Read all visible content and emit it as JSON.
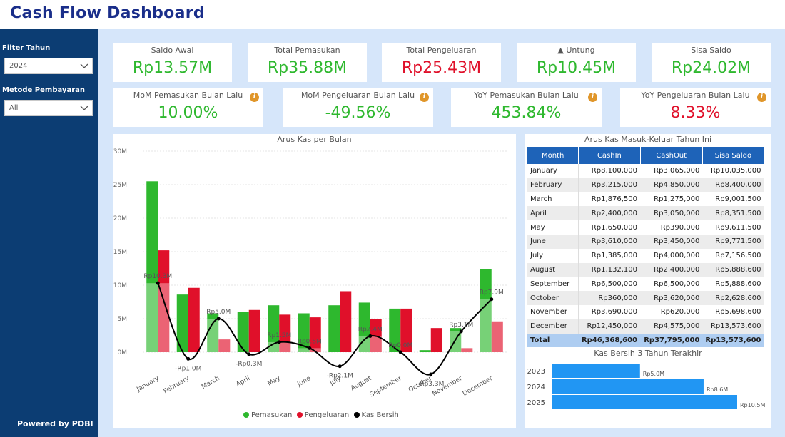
{
  "header": {
    "title": "Cash Flow Dashboard"
  },
  "sidebar": {
    "filter_year_label": "Filter Tahun",
    "filter_year_value": "2024",
    "payment_method_label": "Metode Pembayaran",
    "payment_method_value": "All",
    "powered_by": "Powered by POBI"
  },
  "kpis": [
    {
      "label": "Saldo Awal",
      "value": "Rp13.57M",
      "color": "#2eb82e"
    },
    {
      "label": "Total Pemasukan",
      "value": "Rp35.88M",
      "color": "#2eb82e"
    },
    {
      "label": "Total Pengeluaran",
      "value": "Rp25.43M",
      "color": "#e0102a"
    },
    {
      "label": "▲ Untung",
      "value": "Rp10.45M",
      "color": "#2eb82e"
    },
    {
      "label": "Sisa Saldo",
      "value": "Rp24.02M",
      "color": "#2eb82e"
    }
  ],
  "growth": [
    {
      "label": "MoM Pemasukan Bulan Lalu",
      "value": "10.00%",
      "color": "#2eb82e"
    },
    {
      "label": "MoM Pengeluaran Bulan Lalu",
      "value": "-49.56%",
      "color": "#2eb82e"
    },
    {
      "label": "YoY Pemasukan Bulan Lalu",
      "value": "453.84%",
      "color": "#2eb82e"
    },
    {
      "label": "YoY Pengeluaran Bulan Lalu",
      "value": "8.33%",
      "color": "#e0102a"
    }
  ],
  "icons": {
    "info": "info-icon",
    "dropdown": "chevron-down-icon"
  },
  "table": {
    "title": "Arus Kas Masuk-Keluar Tahun Ini",
    "columns": [
      "Month",
      "CashIn",
      "CashOut",
      "Sisa Saldo"
    ],
    "rows": [
      [
        "January",
        "Rp8,100,000",
        "Rp3,065,000",
        "Rp10,035,000"
      ],
      [
        "February",
        "Rp3,215,000",
        "Rp4,850,000",
        "Rp8,400,000"
      ],
      [
        "March",
        "Rp1,876,500",
        "Rp1,275,000",
        "Rp9,001,500"
      ],
      [
        "April",
        "Rp2,400,000",
        "Rp3,050,000",
        "Rp8,351,500"
      ],
      [
        "May",
        "Rp1,650,000",
        "Rp390,000",
        "Rp9,611,500"
      ],
      [
        "June",
        "Rp3,610,000",
        "Rp3,450,000",
        "Rp9,771,500"
      ],
      [
        "July",
        "Rp1,385,000",
        "Rp4,000,000",
        "Rp7,156,500"
      ],
      [
        "August",
        "Rp1,132,100",
        "Rp2,400,000",
        "Rp5,888,600"
      ],
      [
        "September",
        "Rp6,500,000",
        "Rp6,500,000",
        "Rp5,888,600"
      ],
      [
        "October",
        "Rp360,000",
        "Rp3,620,000",
        "Rp2,628,600"
      ],
      [
        "November",
        "Rp3,690,000",
        "Rp620,000",
        "Rp5,698,600"
      ],
      [
        "December",
        "Rp12,450,000",
        "Rp4,575,000",
        "Rp13,573,600"
      ]
    ],
    "total": [
      "Total",
      "Rp46,368,600",
      "Rp37,795,000",
      "Rp13,573,600"
    ]
  },
  "chart_data": [
    {
      "type": "bar",
      "title": "Arus Kas per Bulan",
      "categories": [
        "January",
        "February",
        "March",
        "April",
        "May",
        "June",
        "July",
        "August",
        "September",
        "October",
        "November",
        "December"
      ],
      "ylim": [
        0,
        30
      ],
      "yticks": [
        "0M",
        "5M",
        "10M",
        "15M",
        "20M",
        "25M",
        "30M"
      ],
      "series": [
        {
          "name": "Pemasukan",
          "color": "#2eb82e",
          "values": [
            25.5,
            8.6,
            5.8,
            6.0,
            7.0,
            5.8,
            7.0,
            7.4,
            6.5,
            0.3,
            3.6,
            12.4
          ]
        },
        {
          "name": "Pengeluaran",
          "color": "#e0102a",
          "values": [
            15.2,
            9.6,
            1.9,
            6.3,
            5.6,
            5.2,
            9.1,
            5.0,
            6.5,
            3.6,
            0.6,
            4.6
          ]
        },
        {
          "name": "Kas Bersih",
          "color": "#000000",
          "type": "line",
          "values": [
            10.3,
            -1.0,
            5.0,
            -0.3,
            1.5,
            0.6,
            -2.1,
            2.4,
            0.0,
            -3.3,
            3.1,
            7.9
          ]
        }
      ],
      "data_labels": [
        "Rp10.3M",
        "-Rp1.0M",
        "Rp5.0M",
        "-Rp0.3M",
        "Rp1.5M",
        "Rp0.6M",
        "-Rp2.1M",
        "Rp2.4M",
        "Rp0.0M",
        "-Rp3.3M",
        "Rp3.1M",
        "Rp7.9M"
      ],
      "legend": "bottom"
    },
    {
      "type": "bar",
      "orientation": "horizontal",
      "title": "Kas Bersih 3 Tahun Terakhir",
      "categories": [
        "2023",
        "2024",
        "2025"
      ],
      "values": [
        5.0,
        8.6,
        10.5
      ],
      "data_labels": [
        "Rp5.0M",
        "Rp8.6M",
        "Rp10.5M"
      ],
      "color": "#2196f3"
    }
  ]
}
